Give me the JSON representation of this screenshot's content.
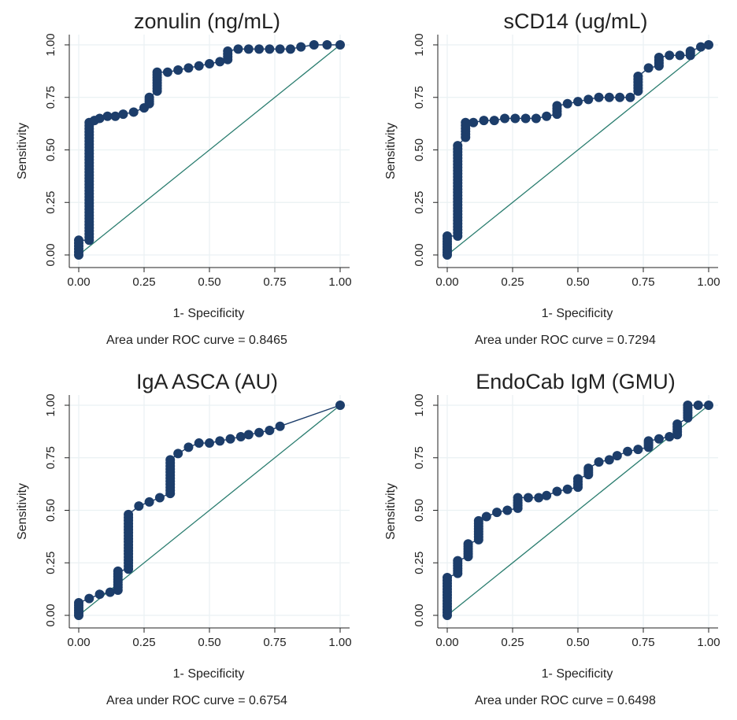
{
  "colors": {
    "curve": "#1c3d6a",
    "reference": "#2a7d6f",
    "grid": "#eaf1f3",
    "axis": "#222222"
  },
  "chart_data": [
    {
      "type": "line",
      "title": "zonulin (ng/mL)",
      "xlabel": "1- Specificity",
      "ylabel": "Sensitivity",
      "note": "Area under ROC curve = 0.8465",
      "xlim": [
        0,
        1
      ],
      "ylim": [
        0,
        1
      ],
      "xticks": [
        "0.00",
        "0.25",
        "0.50",
        "0.75",
        "1.00"
      ],
      "yticks": [
        "0.00",
        "0.25",
        "0.50",
        "0.75",
        "1.00"
      ],
      "grid": true,
      "series": [
        {
          "x": [
            0,
            0,
            0.04,
            0.04,
            0.06,
            0.08,
            0.11,
            0.14,
            0.17,
            0.21,
            0.25,
            0.27,
            0.27,
            0.3,
            0.3,
            0.34,
            0.38,
            0.42,
            0.46,
            0.5,
            0.54,
            0.57,
            0.57,
            0.61,
            0.65,
            0.69,
            0.73,
            0.77,
            0.81,
            0.85,
            0.9,
            0.95,
            1.0
          ],
          "y": [
            0,
            0.07,
            0.07,
            0.63,
            0.64,
            0.65,
            0.66,
            0.66,
            0.67,
            0.68,
            0.7,
            0.72,
            0.75,
            0.78,
            0.87,
            0.87,
            0.88,
            0.89,
            0.9,
            0.91,
            0.92,
            0.93,
            0.97,
            0.98,
            0.98,
            0.98,
            0.98,
            0.98,
            0.98,
            0.99,
            1.0,
            1.0,
            1.0
          ]
        }
      ],
      "reference_line": [
        [
          0,
          0
        ],
        [
          1,
          1
        ]
      ]
    },
    {
      "type": "line",
      "title": "sCD14 (ug/mL)",
      "xlabel": "1- Specificity",
      "ylabel": "Sensitivity",
      "note": "Area under ROC curve = 0.7294",
      "xlim": [
        0,
        1
      ],
      "ylim": [
        0,
        1
      ],
      "xticks": [
        "0.00",
        "0.25",
        "0.50",
        "0.75",
        "1.00"
      ],
      "yticks": [
        "0.00",
        "0.25",
        "0.50",
        "0.75",
        "1.00"
      ],
      "grid": true,
      "series": [
        {
          "x": [
            0,
            0,
            0.04,
            0.04,
            0.07,
            0.07,
            0.1,
            0.14,
            0.18,
            0.22,
            0.26,
            0.3,
            0.34,
            0.38,
            0.42,
            0.42,
            0.46,
            0.5,
            0.54,
            0.58,
            0.62,
            0.66,
            0.7,
            0.73,
            0.73,
            0.77,
            0.81,
            0.81,
            0.85,
            0.89,
            0.93,
            0.93,
            0.97,
            1.0
          ],
          "y": [
            0,
            0.09,
            0.09,
            0.52,
            0.56,
            0.63,
            0.63,
            0.64,
            0.64,
            0.65,
            0.65,
            0.65,
            0.65,
            0.66,
            0.67,
            0.71,
            0.72,
            0.73,
            0.74,
            0.75,
            0.75,
            0.75,
            0.75,
            0.78,
            0.85,
            0.89,
            0.9,
            0.94,
            0.95,
            0.95,
            0.95,
            0.97,
            0.99,
            1.0
          ]
        }
      ],
      "reference_line": [
        [
          0,
          0
        ],
        [
          1,
          1
        ]
      ]
    },
    {
      "type": "line",
      "title": "IgA ASCA (AU)",
      "xlabel": "1- Specificity",
      "ylabel": "Sensitivity",
      "note": "Area under ROC curve = 0.6754",
      "xlim": [
        0,
        1
      ],
      "ylim": [
        0,
        1
      ],
      "xticks": [
        "0.00",
        "0.25",
        "0.50",
        "0.75",
        "1.00"
      ],
      "yticks": [
        "0.00",
        "0.25",
        "0.50",
        "0.75",
        "1.00"
      ],
      "grid": true,
      "series": [
        {
          "x": [
            0,
            0,
            0.04,
            0.08,
            0.12,
            0.15,
            0.15,
            0.19,
            0.19,
            0.23,
            0.27,
            0.31,
            0.35,
            0.35,
            0.38,
            0.42,
            0.46,
            0.5,
            0.54,
            0.58,
            0.62,
            0.65,
            0.69,
            0.73,
            0.77,
            1.0
          ],
          "y": [
            0,
            0.06,
            0.08,
            0.1,
            0.11,
            0.12,
            0.21,
            0.22,
            0.48,
            0.52,
            0.54,
            0.56,
            0.58,
            0.74,
            0.77,
            0.8,
            0.82,
            0.82,
            0.83,
            0.84,
            0.85,
            0.86,
            0.87,
            0.88,
            0.9,
            1.0
          ]
        }
      ],
      "reference_line": [
        [
          0,
          0
        ],
        [
          1,
          1
        ]
      ]
    },
    {
      "type": "line",
      "title": "EndoCab IgM (GMU)",
      "xlabel": "1- Specificity",
      "ylabel": "Sensitivity",
      "note": "Area under ROC curve = 0.6498",
      "xlim": [
        0,
        1
      ],
      "ylim": [
        0,
        1
      ],
      "xticks": [
        "0.00",
        "0.25",
        "0.50",
        "0.75",
        "1.00"
      ],
      "yticks": [
        "0.00",
        "0.25",
        "0.50",
        "0.75",
        "1.00"
      ],
      "grid": true,
      "series": [
        {
          "x": [
            0,
            0,
            0.04,
            0.04,
            0.08,
            0.08,
            0.12,
            0.12,
            0.15,
            0.19,
            0.23,
            0.27,
            0.27,
            0.31,
            0.35,
            0.38,
            0.42,
            0.46,
            0.5,
            0.5,
            0.54,
            0.54,
            0.58,
            0.62,
            0.65,
            0.69,
            0.73,
            0.77,
            0.77,
            0.81,
            0.85,
            0.88,
            0.88,
            0.92,
            0.92,
            0.96,
            1.0
          ],
          "y": [
            0,
            0.18,
            0.2,
            0.26,
            0.28,
            0.34,
            0.36,
            0.45,
            0.47,
            0.49,
            0.5,
            0.51,
            0.56,
            0.56,
            0.56,
            0.57,
            0.59,
            0.6,
            0.61,
            0.65,
            0.67,
            0.7,
            0.73,
            0.74,
            0.76,
            0.78,
            0.79,
            0.8,
            0.83,
            0.84,
            0.85,
            0.86,
            0.91,
            0.94,
            1.0,
            1.0,
            1.0
          ]
        }
      ],
      "reference_line": [
        [
          0,
          0
        ],
        [
          1,
          1
        ]
      ]
    }
  ]
}
